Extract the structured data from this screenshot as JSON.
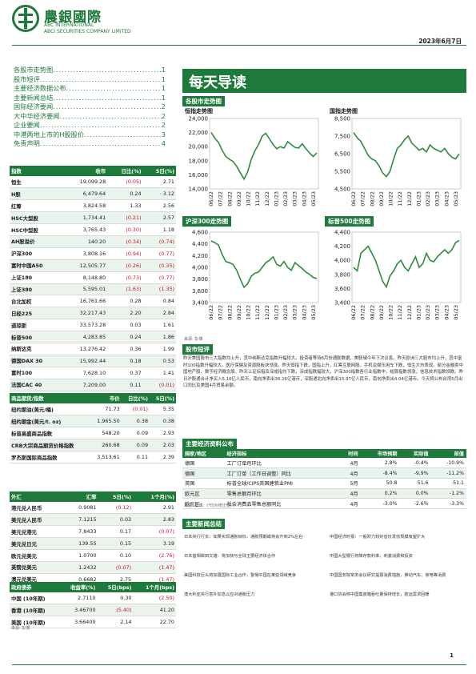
{
  "header": {
    "brand_cn": "農銀國際",
    "brand_en1": "ABC INTERNATIONAL",
    "brand_en2": "ABCI SECURITIES COMPANY LIMITED",
    "date": "2023年6月7日",
    "colors": {
      "accent": "#1e7a3a",
      "negative": "#c8102e"
    }
  },
  "toc": [
    {
      "label": "各股市走势图",
      "page": "1"
    },
    {
      "label": "股市短评",
      "page": "1"
    },
    {
      "label": "主要经济数据公布",
      "page": "1"
    },
    {
      "label": "主要新闻总结",
      "page": "1"
    },
    {
      "label": "国际经济要闻",
      "page": "2"
    },
    {
      "label": "大中华经济要闻",
      "page": "2"
    },
    {
      "label": "企业要闻",
      "page": "2"
    },
    {
      "label": "中港两地上市的H股股价",
      "page": "3"
    },
    {
      "label": "免责声明",
      "page": "4"
    }
  ],
  "indices": {
    "headers": [
      "指数",
      "收市",
      "日比(%)",
      "5日(%)"
    ],
    "rows": [
      [
        "恒生",
        "19,099.28",
        "(0.05)",
        "2.71"
      ],
      [
        "H股",
        "6,479.64",
        "0.24",
        "3.12"
      ],
      [
        "红筹",
        "3,824.58",
        "1.33",
        "2.56"
      ],
      [
        "HSC大型股",
        "1,734.41",
        "(0.21)",
        "2.57"
      ],
      [
        "HSC中型股",
        "3,765.43",
        "(0.30)",
        "1.18"
      ],
      [
        "AH股溢价",
        "140.20",
        "(0.34)",
        "(0.74)"
      ],
      [
        "沪深300",
        "3,808.16",
        "(0.94)",
        "(0.77)"
      ],
      [
        "富时中国A50",
        "12,505.77",
        "(0.26)",
        "(0.35)"
      ],
      [
        "上证180",
        "8,148.80",
        "(0.73)",
        "(0.77)"
      ],
      [
        "上证380",
        "5,595.01",
        "(1.63)",
        "(1.35)"
      ],
      [
        "台北加权",
        "16,761.66",
        "0.28",
        "0.84"
      ],
      [
        "日经225",
        "32,217.43",
        "2.20",
        "2.84"
      ],
      [
        "道琼斯",
        "33,573.28",
        "0.03",
        "1.61"
      ],
      [
        "标普500",
        "4,283.85",
        "0.24",
        "1.86"
      ],
      [
        "纳斯达克",
        "13,276.42",
        "0.36",
        "1.99"
      ],
      [
        "德国DAX 30",
        "15,992.44",
        "0.18",
        "0.53"
      ],
      [
        "富时100",
        "7,628.10",
        "0.37",
        "1.41"
      ],
      [
        "法国CAC 40",
        "7,209.00",
        "0.11",
        "(0.01)"
      ]
    ]
  },
  "commodities": {
    "headers": [
      "商品期货/指数",
      "市价",
      "日比(%)",
      "5日(%)"
    ],
    "rows": [
      [
        "纽约期油(美元/桶)",
        "71.73",
        "(0.01)",
        "5.35"
      ],
      [
        "纽约期金(美元/t. oz)",
        "1,965.50",
        "0.38",
        "0.38"
      ],
      [
        "标普高盛商品指数",
        "548.20",
        "0.09",
        "2.93"
      ],
      [
        "CRB大宗商品期货价格指数",
        "260.68",
        "0.09",
        "2.03"
      ],
      [
        "罗杰斯国际商品指数",
        "3,513.61",
        "0.11",
        "2.39"
      ]
    ]
  },
  "fx": {
    "headers": [
      "外汇",
      "汇率",
      "5日(%)",
      "1个月(%)"
    ],
    "rows": [
      [
        "港元兑人民币",
        "0.9081",
        "(0.12)",
        "2.91"
      ],
      [
        "美元兑人民币",
        "7.1215",
        "0.03",
        "2.83"
      ],
      [
        "美元兑港元",
        "7.8433",
        "0.17",
        "(0.07)"
      ],
      [
        "美元兑日元",
        "139.55",
        "0.15",
        "3.19"
      ],
      [
        "欧元兑美元",
        "1.0700",
        "0.10",
        "(2.76)"
      ],
      [
        "英镑兑美元",
        "1.2432",
        "(0.07)",
        "(1.47)"
      ],
      [
        "澳元兑美元",
        "0.6682",
        "2.75",
        "(1.47)"
      ]
    ]
  },
  "bonds": {
    "headers": [
      "政府债券",
      "收益率(%)",
      "5日(bps)",
      "1个月(bps)"
    ],
    "rows": [
      [
        "中国 (10年期)",
        "2.7110",
        "0.30",
        "(2.50)"
      ],
      [
        "香港 (10年期)",
        "3.46700",
        "(5.40)",
        "41.20"
      ],
      [
        "美国 (10年期)",
        "3.66400",
        "2.14",
        "22.70"
      ]
    ],
    "source": "来源: 彭博"
  },
  "main_title": "每天导读",
  "charts_section": "各股市走势图",
  "charts": [
    {
      "title": "恒指走势图",
      "ylim": [
        14000,
        24000
      ],
      "yticks": [
        "24,000",
        "22,000",
        "20,000",
        "18,000",
        "16,000",
        "14,000"
      ],
      "values": [
        22000,
        21200,
        20600,
        19500,
        18600,
        18200,
        17900,
        17200,
        16300,
        15400,
        16400,
        18200,
        19400,
        20300,
        21500,
        21900,
        21100,
        20300,
        19700,
        20000,
        19800,
        20700,
        20300,
        19900,
        19800,
        20400,
        19700,
        19100,
        18600,
        19100
      ]
    },
    {
      "title": "国指走势图",
      "ylim": [
        4500,
        8500
      ],
      "yticks": [
        "8,500",
        "7,500",
        "6,500",
        "5,500",
        "4,500"
      ],
      "values": [
        7700,
        7400,
        7200,
        6800,
        6400,
        6200,
        6100,
        5800,
        5400,
        5200,
        5500,
        6200,
        6800,
        7000,
        7300,
        7500,
        7100,
        6900,
        6700,
        6800,
        6600,
        7000,
        6800,
        6700,
        6600,
        6800,
        6500,
        6300,
        6200,
        6480
      ]
    },
    {
      "title": "沪深300走势图",
      "ylim": [
        3400,
        4600
      ],
      "yticks": [
        "4,600",
        "4,400",
        "4,200",
        "4,000",
        "3,800",
        "3,600",
        "3,400"
      ],
      "values": [
        4450,
        4420,
        4380,
        4220,
        4100,
        4080,
        4050,
        3950,
        3800,
        3660,
        3720,
        3850,
        3900,
        3920,
        4000,
        4080,
        4120,
        4180,
        4050,
        4020,
        4100,
        4000,
        3950,
        4080,
        4030,
        3980,
        3920,
        3880,
        3830,
        3808
      ]
    },
    {
      "title": "标普500走势图",
      "ylim": [
        3400,
        4400
      ],
      "yticks": [
        "4,400",
        "4,200",
        "4,000",
        "3,800",
        "3,600",
        "3,400"
      ],
      "values": [
        3900,
        3850,
        4100,
        4150,
        4200,
        4100,
        4000,
        3850,
        3700,
        3620,
        3780,
        3850,
        3950,
        4000,
        3900,
        3850,
        3950,
        4050,
        3900,
        3950,
        4100,
        4000,
        3980,
        4050,
        4100,
        4150,
        4100,
        4150,
        4250,
        4283
      ]
    }
  ],
  "x_labels": [
    "06/22",
    "07/22",
    "08/22",
    "09/22",
    "10/22",
    "11/22",
    "12/22",
    "01/23",
    "02/23",
    "03/23",
    "04/23",
    "05/23"
  ],
  "chart_source": "来源: 彭博",
  "market_section": "股市短评",
  "market_text": "昨天美国股市三大指数均上升，其中纳斯达克指数升幅较大。投资者等待6月份通胀数据，美联储今年下次议息。昨天欧洲三大股市均上升，其中富时100指数升幅较大。医疗保健及资源股板块领涨。昨天恒指下跌，国指上升，红筹互联网股。手机及娱乐用车下跌，恒生大市表现。部分金融类中国地产股、数字经济概念股、昨天上证综指及深成指均下跌，深成指跌幅较大，沪深300指数各行业指数中，结算指数领涨，信息技术指数领跌。昨日沪股通合计净买入5.16亿人民币，南向净卖出36.26亿港币，深股通北向净卖出15.97亿人民币，南向净卖出4.04亿港币。今天将公布台湾5月出口同比及美国4月贸易余额。",
  "econ": {
    "section": "主要经济资料公布",
    "headers": [
      "国家/地区",
      "经济指标",
      "时间",
      "市场预期",
      "实际值",
      "前值"
    ],
    "rows": [
      [
        "德国",
        "工厂订单月环比",
        "4月",
        "2.8%",
        "-0.4%",
        "-10.9%"
      ],
      [
        "德国",
        "工厂订单（工作日调整）同比",
        "4月",
        "-8.4%",
        "-9.9%",
        "-11.2%"
      ],
      [
        "英国",
        "标普全球/CIPS英国建筑业PMI",
        "5月",
        "50.8",
        "51.6",
        "51.1"
      ],
      [
        "欧元区",
        "零售总额月环比",
        "4月",
        "0.2%",
        "0.0%",
        "-1.2%"
      ],
      [
        "欧元区",
        "社会消费品零售总额同比",
        "4月",
        "-3.0%",
        "-2.6%",
        "-3.3%"
      ]
    ],
    "source": "来源: 彭博、(*均为修正值)"
  },
  "news": {
    "section": "主要新闻总结",
    "left": [
      "日本央行行长：如果实现通胀目标，通胀预期或将会升到2%左右",
      "日本首相岸田文雄：将加快与全球主要经济体合作",
      "美国科技巨头将加强国际工业合作，警惕中国在某些领域竞争",
      "澳大利亚央行意外加息以应对通胀压力"
    ],
    "right": [
      "中国经济时报：一般财力较好省份发债规模有望扩大",
      "中国大型银行将降存款利率，刺激消费和投资",
      "中国国务院常务会议研究提振消费措施，推动汽车、家电等消费",
      "港口协会称中国集装箱吞吐量保持增长，航运需求回暖"
    ]
  },
  "page_number": "1"
}
